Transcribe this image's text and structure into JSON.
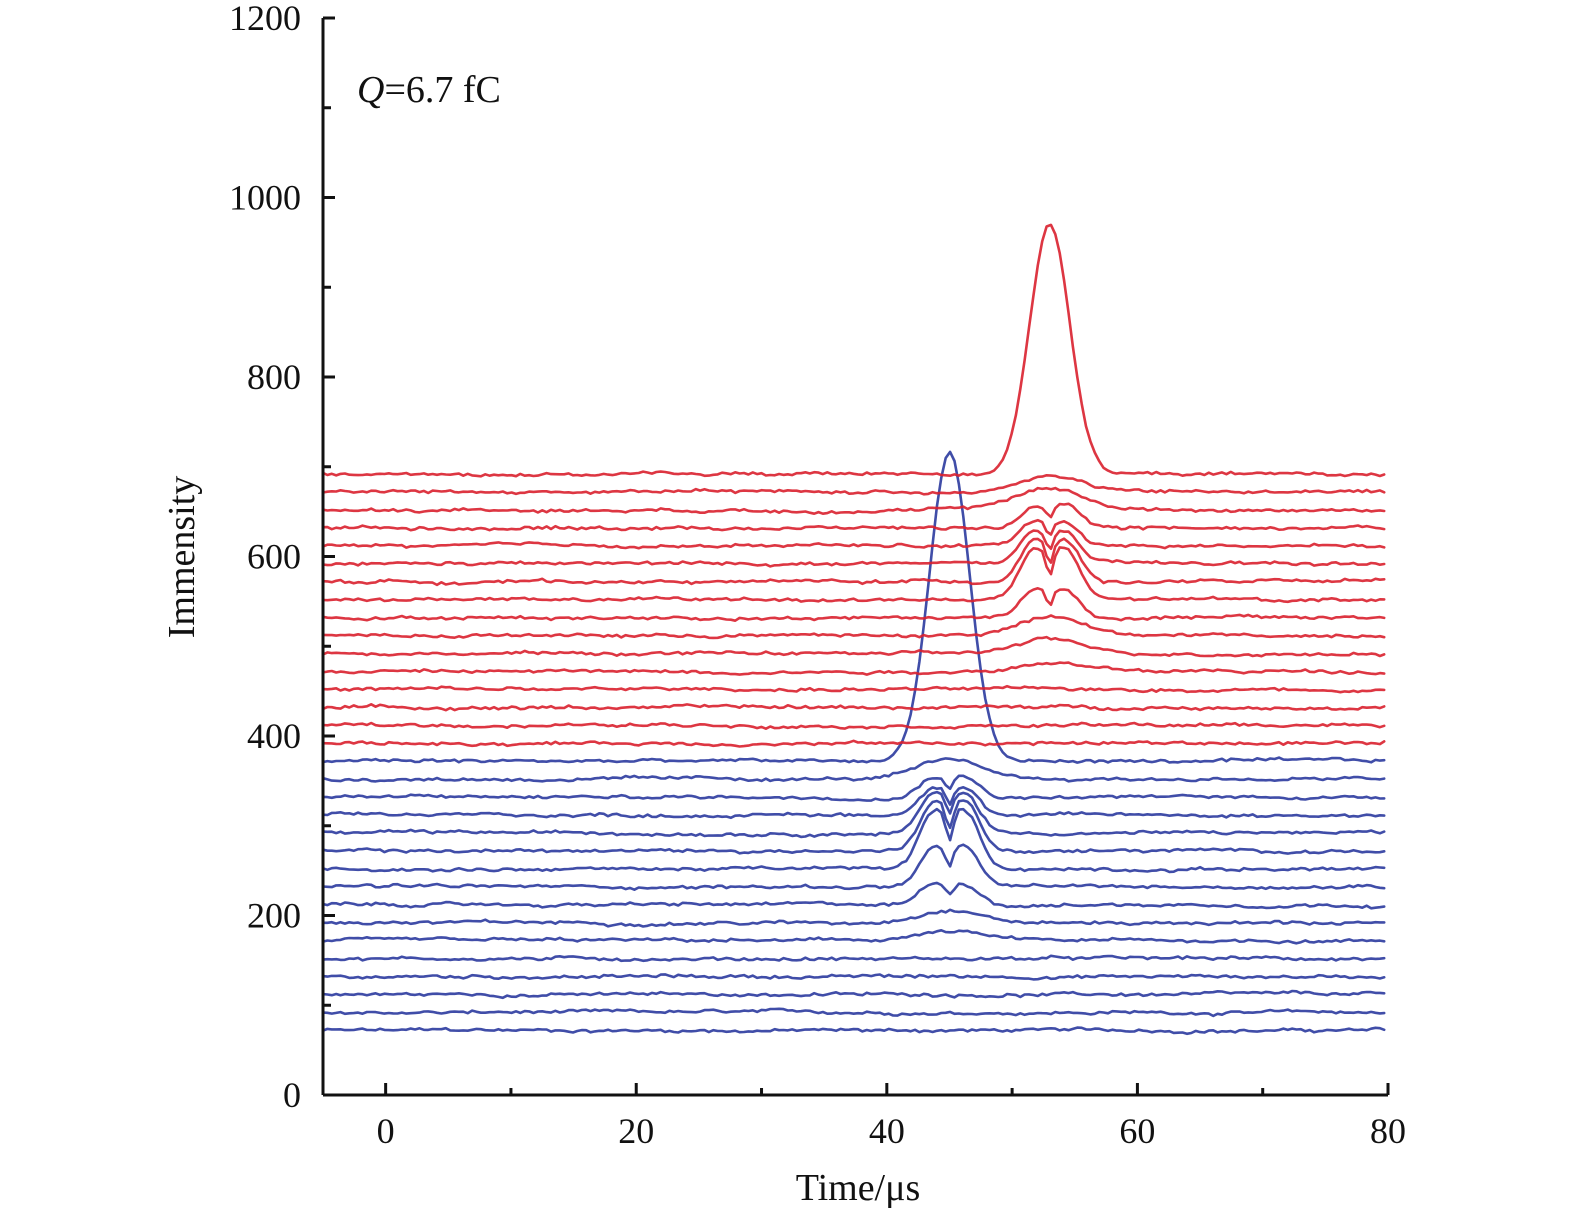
{
  "chart_data": {
    "type": "line",
    "title": "",
    "xlabel": "Time/μs",
    "ylabel": "Immensity",
    "xlim": [
      -5,
      80
    ],
    "ylim": [
      0,
      1200
    ],
    "xticks": [
      0,
      20,
      40,
      60,
      80
    ],
    "xtick_labels": [
      "0",
      "20",
      "40",
      "60",
      "80"
    ],
    "yticks": [
      0,
      200,
      400,
      600,
      800,
      1000,
      1200
    ],
    "ytick_labels": [
      "0",
      "200",
      "400",
      "600",
      "800",
      "1000",
      "1200"
    ],
    "annotation": {
      "q_symbol": "Q",
      "q_value": "=6.7 fC"
    },
    "grid": false,
    "legend": "none",
    "colors": {
      "blue": "#2b3a9e",
      "red": "#d9202e",
      "axis": "#111111"
    },
    "series": [
      {
        "color": "blue",
        "baseline": 72,
        "peak_center": null,
        "peak_height": 0
      },
      {
        "color": "blue",
        "baseline": 92,
        "peak_center": null,
        "peak_height": 0
      },
      {
        "color": "blue",
        "baseline": 112,
        "peak_center": null,
        "peak_height": 0
      },
      {
        "color": "blue",
        "baseline": 132,
        "peak_center": null,
        "peak_height": 0
      },
      {
        "color": "blue",
        "baseline": 152,
        "peak_center": null,
        "peak_height": 0
      },
      {
        "color": "blue",
        "baseline": 172,
        "peak_center": 45,
        "peak_height": 10
      },
      {
        "color": "blue",
        "baseline": 192,
        "peak_center": 45,
        "peak_height": 15
      },
      {
        "color": "blue",
        "baseline": 212,
        "peak_center": 45,
        "peak_height": 30
      },
      {
        "color": "blue",
        "baseline": 232,
        "peak_center": 45,
        "peak_height": 55
      },
      {
        "color": "blue",
        "baseline": 252,
        "peak_center": 45,
        "peak_height": 80
      },
      {
        "color": "blue",
        "baseline": 272,
        "peak_center": 45,
        "peak_height": 70
      },
      {
        "color": "blue",
        "baseline": 292,
        "peak_center": 45,
        "peak_height": 55
      },
      {
        "color": "blue",
        "baseline": 312,
        "peak_center": 45,
        "peak_height": 40
      },
      {
        "color": "blue",
        "baseline": 332,
        "peak_center": 45,
        "peak_height": 30
      },
      {
        "color": "blue",
        "baseline": 352,
        "peak_center": 45,
        "peak_height": 20
      },
      {
        "color": "blue",
        "baseline": 372,
        "peak_center": 45,
        "peak_height": 345
      },
      {
        "color": "red",
        "baseline": 392,
        "peak_center": null,
        "peak_height": 0
      },
      {
        "color": "red",
        "baseline": 412,
        "peak_center": null,
        "peak_height": 0
      },
      {
        "color": "red",
        "baseline": 432,
        "peak_center": null,
        "peak_height": 0
      },
      {
        "color": "red",
        "baseline": 452,
        "peak_center": null,
        "peak_height": 0
      },
      {
        "color": "red",
        "baseline": 472,
        "peak_center": 53,
        "peak_height": 10
      },
      {
        "color": "red",
        "baseline": 492,
        "peak_center": 53,
        "peak_height": 15
      },
      {
        "color": "red",
        "baseline": 512,
        "peak_center": 53,
        "peak_height": 20
      },
      {
        "color": "red",
        "baseline": 532,
        "peak_center": 53,
        "peak_height": 40
      },
      {
        "color": "red",
        "baseline": 552,
        "peak_center": 53,
        "peak_height": 70
      },
      {
        "color": "red",
        "baseline": 572,
        "peak_center": 53,
        "peak_height": 60
      },
      {
        "color": "red",
        "baseline": 592,
        "peak_center": 53,
        "peak_height": 45
      },
      {
        "color": "red",
        "baseline": 612,
        "peak_center": 53,
        "peak_height": 35
      },
      {
        "color": "red",
        "baseline": 632,
        "peak_center": 53,
        "peak_height": 30
      },
      {
        "color": "red",
        "baseline": 652,
        "peak_center": 53,
        "peak_height": 25
      },
      {
        "color": "red",
        "baseline": 672,
        "peak_center": 53,
        "peak_height": 18
      },
      {
        "color": "red",
        "baseline": 692,
        "peak_center": 53,
        "peak_height": 280
      }
    ]
  }
}
